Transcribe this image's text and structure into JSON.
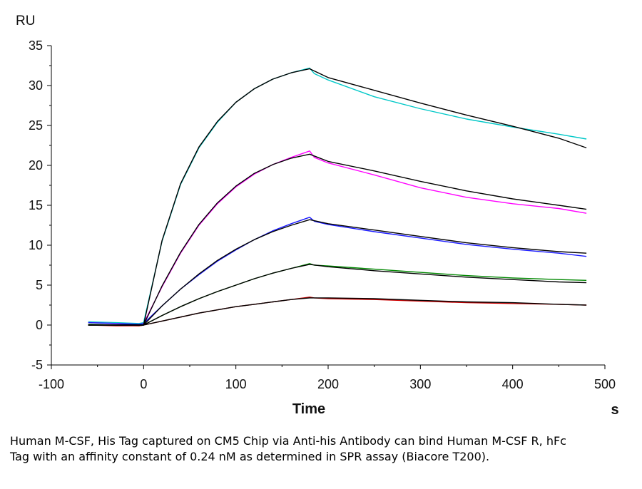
{
  "chart_data": {
    "type": "line",
    "ylabel": "RU",
    "xlabel": "Time",
    "xunit": "s",
    "xlim": [
      -100,
      500
    ],
    "ylim": [
      -5,
      35
    ],
    "x_ticks": [
      -100,
      0,
      100,
      200,
      300,
      400,
      500
    ],
    "y_ticks": [
      -5,
      0,
      5,
      10,
      15,
      20,
      25,
      30,
      35
    ],
    "grid": false,
    "series": [
      {
        "color": "#00c8c8",
        "points": [
          [
            -60,
            0.4
          ],
          [
            -30,
            0.3
          ],
          [
            -5,
            0.2
          ],
          [
            0,
            0.3
          ],
          [
            20,
            10.5
          ],
          [
            40,
            17.6
          ],
          [
            60,
            22.2
          ],
          [
            80,
            25.4
          ],
          [
            100,
            27.9
          ],
          [
            120,
            29.6
          ],
          [
            140,
            30.8
          ],
          [
            160,
            31.6
          ],
          [
            180,
            32.2
          ],
          [
            185,
            31.5
          ],
          [
            200,
            30.7
          ],
          [
            250,
            28.6
          ],
          [
            300,
            27.1
          ],
          [
            350,
            25.8
          ],
          [
            400,
            24.8
          ],
          [
            450,
            23.9
          ],
          [
            480,
            23.3
          ]
        ]
      },
      {
        "color": "#ff00ff",
        "points": [
          [
            -60,
            0.3
          ],
          [
            -30,
            0.2
          ],
          [
            -5,
            0.1
          ],
          [
            0,
            0.2
          ],
          [
            20,
            4.8
          ],
          [
            40,
            9.0
          ],
          [
            60,
            12.5
          ],
          [
            80,
            15.2
          ],
          [
            100,
            17.3
          ],
          [
            120,
            18.9
          ],
          [
            140,
            20.1
          ],
          [
            160,
            21.0
          ],
          [
            180,
            21.8
          ],
          [
            185,
            21.0
          ],
          [
            200,
            20.3
          ],
          [
            250,
            18.8
          ],
          [
            300,
            17.2
          ],
          [
            350,
            16.0
          ],
          [
            400,
            15.2
          ],
          [
            450,
            14.6
          ],
          [
            480,
            14.0
          ]
        ]
      },
      {
        "color": "#1a1aff",
        "points": [
          [
            -60,
            0.3
          ],
          [
            -30,
            0.2
          ],
          [
            -5,
            0.1
          ],
          [
            0,
            0.2
          ],
          [
            20,
            2.4
          ],
          [
            40,
            4.5
          ],
          [
            60,
            6.3
          ],
          [
            80,
            8.0
          ],
          [
            100,
            9.4
          ],
          [
            120,
            10.7
          ],
          [
            140,
            11.8
          ],
          [
            160,
            12.7
          ],
          [
            180,
            13.5
          ],
          [
            185,
            13.0
          ],
          [
            200,
            12.6
          ],
          [
            250,
            11.7
          ],
          [
            300,
            10.9
          ],
          [
            350,
            10.1
          ],
          [
            400,
            9.5
          ],
          [
            450,
            9.0
          ],
          [
            480,
            8.6
          ]
        ]
      },
      {
        "color": "#008800",
        "points": [
          [
            -60,
            0.1
          ],
          [
            -30,
            0.0
          ],
          [
            -5,
            -0.1
          ],
          [
            0,
            0.0
          ],
          [
            20,
            1.2
          ],
          [
            40,
            2.3
          ],
          [
            60,
            3.3
          ],
          [
            80,
            4.2
          ],
          [
            100,
            5.0
          ],
          [
            120,
            5.8
          ],
          [
            140,
            6.5
          ],
          [
            160,
            7.1
          ],
          [
            180,
            7.7
          ],
          [
            185,
            7.5
          ],
          [
            200,
            7.4
          ],
          [
            250,
            7.0
          ],
          [
            300,
            6.6
          ],
          [
            350,
            6.2
          ],
          [
            400,
            5.9
          ],
          [
            450,
            5.7
          ],
          [
            480,
            5.6
          ]
        ]
      },
      {
        "color": "#cc0000",
        "points": [
          [
            -60,
            0.0
          ],
          [
            -30,
            -0.1
          ],
          [
            -5,
            -0.1
          ],
          [
            0,
            0.0
          ],
          [
            20,
            0.5
          ],
          [
            40,
            1.0
          ],
          [
            60,
            1.5
          ],
          [
            80,
            1.9
          ],
          [
            100,
            2.3
          ],
          [
            120,
            2.6
          ],
          [
            140,
            2.9
          ],
          [
            160,
            3.2
          ],
          [
            180,
            3.5
          ],
          [
            185,
            3.4
          ],
          [
            200,
            3.3
          ],
          [
            250,
            3.2
          ],
          [
            300,
            3.0
          ],
          [
            350,
            2.8
          ],
          [
            400,
            2.7
          ],
          [
            450,
            2.6
          ],
          [
            480,
            2.5
          ]
        ]
      },
      {
        "color": "#000000",
        "points": [
          [
            -60,
            0.0
          ],
          [
            0,
            0.0
          ],
          [
            20,
            10.6
          ],
          [
            40,
            17.7
          ],
          [
            60,
            22.3
          ],
          [
            80,
            25.5
          ],
          [
            100,
            27.9
          ],
          [
            120,
            29.6
          ],
          [
            140,
            30.8
          ],
          [
            160,
            31.6
          ],
          [
            180,
            32.1
          ],
          [
            200,
            31.0
          ],
          [
            250,
            29.4
          ],
          [
            300,
            27.8
          ],
          [
            350,
            26.3
          ],
          [
            400,
            24.9
          ],
          [
            450,
            23.4
          ],
          [
            480,
            22.2
          ]
        ]
      },
      {
        "color": "#000000",
        "points": [
          [
            -60,
            0.0
          ],
          [
            0,
            0.0
          ],
          [
            20,
            4.9
          ],
          [
            40,
            9.1
          ],
          [
            60,
            12.6
          ],
          [
            80,
            15.3
          ],
          [
            100,
            17.4
          ],
          [
            120,
            19.0
          ],
          [
            140,
            20.1
          ],
          [
            160,
            20.9
          ],
          [
            180,
            21.4
          ],
          [
            200,
            20.5
          ],
          [
            250,
            19.3
          ],
          [
            300,
            18.0
          ],
          [
            350,
            16.8
          ],
          [
            400,
            15.8
          ],
          [
            450,
            15.0
          ],
          [
            480,
            14.5
          ]
        ]
      },
      {
        "color": "#000000",
        "points": [
          [
            -60,
            0.0
          ],
          [
            0,
            0.0
          ],
          [
            20,
            2.4
          ],
          [
            40,
            4.5
          ],
          [
            60,
            6.4
          ],
          [
            80,
            8.1
          ],
          [
            100,
            9.5
          ],
          [
            120,
            10.7
          ],
          [
            140,
            11.7
          ],
          [
            160,
            12.5
          ],
          [
            180,
            13.2
          ],
          [
            200,
            12.7
          ],
          [
            250,
            11.9
          ],
          [
            300,
            11.1
          ],
          [
            350,
            10.3
          ],
          [
            400,
            9.7
          ],
          [
            450,
            9.2
          ],
          [
            480,
            9.0
          ]
        ]
      },
      {
        "color": "#000000",
        "points": [
          [
            -60,
            0.0
          ],
          [
            0,
            0.0
          ],
          [
            20,
            1.2
          ],
          [
            40,
            2.3
          ],
          [
            60,
            3.3
          ],
          [
            80,
            4.2
          ],
          [
            100,
            5.0
          ],
          [
            120,
            5.8
          ],
          [
            140,
            6.5
          ],
          [
            160,
            7.1
          ],
          [
            180,
            7.6
          ],
          [
            200,
            7.3
          ],
          [
            250,
            6.8
          ],
          [
            300,
            6.4
          ],
          [
            350,
            6.0
          ],
          [
            400,
            5.7
          ],
          [
            450,
            5.4
          ],
          [
            480,
            5.3
          ]
        ]
      },
      {
        "color": "#000000",
        "points": [
          [
            -60,
            0.0
          ],
          [
            0,
            0.0
          ],
          [
            20,
            0.5
          ],
          [
            40,
            1.0
          ],
          [
            60,
            1.5
          ],
          [
            80,
            1.9
          ],
          [
            100,
            2.3
          ],
          [
            120,
            2.6
          ],
          [
            140,
            2.9
          ],
          [
            160,
            3.2
          ],
          [
            180,
            3.4
          ],
          [
            200,
            3.4
          ],
          [
            250,
            3.3
          ],
          [
            300,
            3.1
          ],
          [
            350,
            2.9
          ],
          [
            400,
            2.8
          ],
          [
            450,
            2.6
          ],
          [
            480,
            2.5
          ]
        ]
      }
    ]
  },
  "caption": "Human M-CSF, His Tag captured on CM5 Chip via Anti-his Antibody can bind Human M-CSF R, hFc Tag with an affinity constant of 0.24 nM as determined in SPR assay (Biacore T200)."
}
